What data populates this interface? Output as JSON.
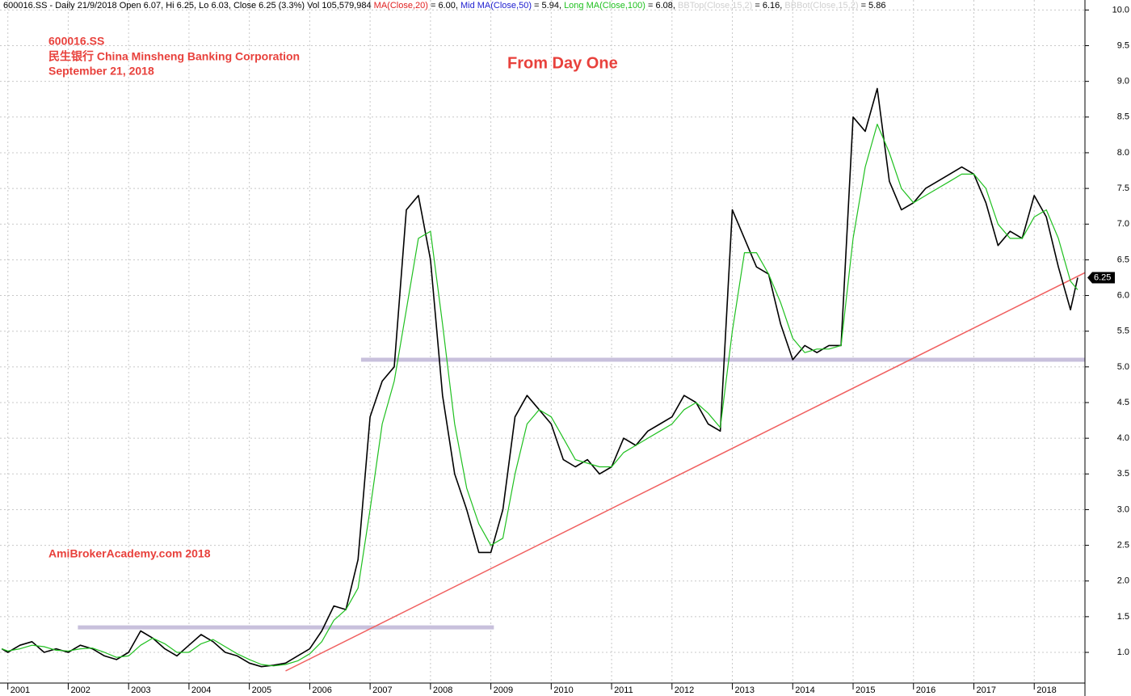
{
  "chart_data": {
    "type": "line",
    "header_segments": [
      {
        "text": "600016.SS - Daily 21/9/2018 Open 6.07, Hi 6.25, Lo 6.03, Close 6.25 (3.3%) Vol 105,579,984 ",
        "color": "#000000"
      },
      {
        "text": "MA(Close,20)",
        "color": "#e02020"
      },
      {
        "text": " = 6.00, ",
        "color": "#000000"
      },
      {
        "text": "Mid MA(Close,50)",
        "color": "#2020d0"
      },
      {
        "text": " = 5.94, ",
        "color": "#000000"
      },
      {
        "text": "Long MA(Close,100)",
        "color": "#20c020"
      },
      {
        "text": " = 6.08, ",
        "color": "#000000"
      },
      {
        "text": "BBTop(Close,15,2)",
        "color": "#d0d0d0"
      },
      {
        "text": " = 6.16, ",
        "color": "#000000"
      },
      {
        "text": "BBBot(Close,15,2)",
        "color": "#d0d0d0"
      },
      {
        "text": " = 5.86",
        "color": "#000000"
      }
    ],
    "annotations": [
      "600016.SS",
      "民生银行 China Minsheng Banking Corporation",
      "September 21, 2018",
      "From Day One",
      "AmiBrokerAcademy.com  2018"
    ],
    "x": [
      2000.9,
      2001.0,
      2001.2,
      2001.4,
      2001.6,
      2001.8,
      2002.0,
      2002.2,
      2002.4,
      2002.6,
      2002.8,
      2003.0,
      2003.2,
      2003.4,
      2003.6,
      2003.8,
      2004.0,
      2004.2,
      2004.4,
      2004.6,
      2004.8,
      2005.0,
      2005.2,
      2005.4,
      2005.6,
      2005.8,
      2006.0,
      2006.2,
      2006.4,
      2006.6,
      2006.8,
      2007.0,
      2007.2,
      2007.4,
      2007.6,
      2007.8,
      2008.0,
      2008.2,
      2008.4,
      2008.6,
      2008.8,
      2009.0,
      2009.2,
      2009.4,
      2009.6,
      2009.8,
      2010.0,
      2010.2,
      2010.4,
      2010.6,
      2010.8,
      2011.0,
      2011.2,
      2011.4,
      2011.6,
      2011.8,
      2012.0,
      2012.2,
      2012.4,
      2012.6,
      2012.8,
      2013.0,
      2013.2,
      2013.4,
      2013.6,
      2013.8,
      2014.0,
      2014.2,
      2014.4,
      2014.6,
      2014.8,
      2015.0,
      2015.2,
      2015.4,
      2015.6,
      2015.8,
      2016.0,
      2016.2,
      2016.4,
      2016.6,
      2016.8,
      2017.0,
      2017.2,
      2017.4,
      2017.6,
      2017.8,
      2018.0,
      2018.2,
      2018.4,
      2018.6,
      2018.72
    ],
    "series": [
      {
        "name": "Close",
        "color": "#000000",
        "values": [
          1.05,
          1.0,
          1.1,
          1.15,
          1.0,
          1.05,
          1.0,
          1.1,
          1.05,
          0.95,
          0.9,
          1.0,
          1.3,
          1.2,
          1.05,
          0.95,
          1.1,
          1.25,
          1.15,
          1.0,
          0.95,
          0.85,
          0.8,
          0.82,
          0.85,
          0.95,
          1.05,
          1.3,
          1.65,
          1.6,
          2.3,
          4.3,
          4.8,
          5.0,
          7.2,
          7.4,
          6.5,
          4.6,
          3.5,
          3.0,
          2.4,
          2.4,
          3.0,
          4.3,
          4.6,
          4.4,
          4.2,
          3.7,
          3.6,
          3.7,
          3.5,
          3.6,
          4.0,
          3.9,
          4.1,
          4.2,
          4.3,
          4.6,
          4.5,
          4.2,
          4.1,
          7.2,
          6.8,
          6.4,
          6.3,
          5.6,
          5.1,
          5.3,
          5.2,
          5.3,
          5.3,
          8.5,
          8.3,
          8.9,
          7.6,
          7.2,
          7.3,
          7.5,
          7.6,
          7.7,
          7.8,
          7.7,
          7.3,
          6.7,
          6.9,
          6.8,
          7.4,
          7.1,
          6.4,
          5.8,
          6.25
        ]
      },
      {
        "name": "Long MA(Close,100)",
        "color": "#20c020",
        "values": [
          1.05,
          1.02,
          1.05,
          1.1,
          1.08,
          1.03,
          1.02,
          1.05,
          1.06,
          1.0,
          0.93,
          0.95,
          1.1,
          1.2,
          1.12,
          1.0,
          1.0,
          1.12,
          1.18,
          1.08,
          0.98,
          0.9,
          0.83,
          0.81,
          0.83,
          0.88,
          0.98,
          1.15,
          1.45,
          1.6,
          1.9,
          3.0,
          4.2,
          4.8,
          5.8,
          6.8,
          6.9,
          5.6,
          4.2,
          3.3,
          2.8,
          2.5,
          2.6,
          3.5,
          4.2,
          4.4,
          4.3,
          4.0,
          3.7,
          3.65,
          3.6,
          3.6,
          3.8,
          3.9,
          4.0,
          4.1,
          4.2,
          4.4,
          4.5,
          4.35,
          4.15,
          5.5,
          6.6,
          6.6,
          6.3,
          5.9,
          5.4,
          5.2,
          5.25,
          5.25,
          5.3,
          6.8,
          7.8,
          8.4,
          8.0,
          7.5,
          7.3,
          7.4,
          7.5,
          7.6,
          7.7,
          7.7,
          7.5,
          7.0,
          6.8,
          6.8,
          7.1,
          7.2,
          6.8,
          6.2,
          6.08
        ]
      }
    ],
    "annotation_lines": [
      {
        "style": "band",
        "color": "#c8c0dc",
        "x": [
          2006.85,
          2018.84
        ],
        "values": [
          5.1,
          5.1
        ]
      },
      {
        "style": "band",
        "color": "#c8c0dc",
        "x": [
          2002.16,
          2009.05
        ],
        "values": [
          1.35,
          1.35
        ]
      },
      {
        "style": "trend",
        "color": "#f06060",
        "x": [
          2005.6,
          2018.84
        ],
        "values": [
          0.74,
          6.32
        ]
      }
    ],
    "last_price": 6.25,
    "xlim": [
      2000.87,
      2018.84
    ],
    "ylim": [
      0.57,
      10.14
    ],
    "xticks": [
      2001,
      2002,
      2003,
      2004,
      2005,
      2006,
      2007,
      2008,
      2009,
      2010,
      2011,
      2012,
      2013,
      2014,
      2015,
      2016,
      2017,
      2018
    ],
    "yticks": [
      {
        "value": 1,
        "label": "1.0"
      },
      {
        "value": 1.5,
        "label": "1.5"
      },
      {
        "value": 2,
        "label": "2.0"
      },
      {
        "value": 2.5,
        "label": "2.5"
      },
      {
        "value": 3,
        "label": "3.0"
      },
      {
        "value": 3.5,
        "label": "3.5"
      },
      {
        "value": 4,
        "label": "4.0"
      },
      {
        "value": 4.5,
        "label": "4.5"
      },
      {
        "value": 5,
        "label": "5.0"
      },
      {
        "value": 5.5,
        "label": "5.5"
      },
      {
        "value": 6,
        "label": "6.0"
      },
      {
        "value": 6.5,
        "label": "6.5"
      },
      {
        "value": 7,
        "label": "7.0"
      },
      {
        "value": 7.5,
        "label": "7.5"
      },
      {
        "value": 8,
        "label": "8.0"
      },
      {
        "value": 8.5,
        "label": "8.5"
      },
      {
        "value": 9,
        "label": "9.0"
      },
      {
        "value": 9.5,
        "label": "9.5"
      },
      {
        "value": 10,
        "label": "10.0"
      }
    ],
    "grid": true
  }
}
